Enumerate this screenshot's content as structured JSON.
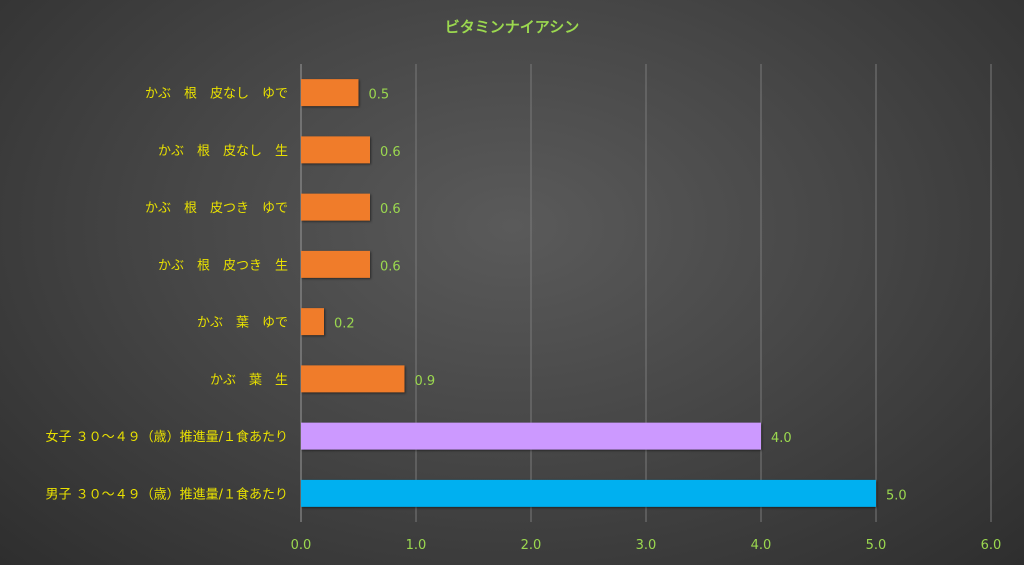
{
  "colors": {
    "title": "#9BD84F",
    "category_label": "#E8E000",
    "tick_label": "#9BD84F",
    "data_label": "#9BD84F",
    "gridline": "#7a7a7a",
    "background": "#474747"
  },
  "chart_data": {
    "type": "bar",
    "orientation": "horizontal",
    "title": "ビタミンナイアシン",
    "xlabel": "",
    "ylabel": "",
    "xlim": [
      0,
      6
    ],
    "x_ticks": [
      "0.0",
      "1.0",
      "2.0",
      "3.0",
      "4.0",
      "5.0",
      "6.0"
    ],
    "grid": true,
    "legend": "none",
    "categories": [
      "かぶ　根　皮なし　ゆで",
      "かぶ　根　皮なし　生",
      "かぶ　根　皮つき　ゆで",
      "かぶ　根　皮つき　生",
      "かぶ　葉　ゆで",
      "かぶ　葉　生",
      "女子 ３０～４９（歳）推進量/１食あたり",
      "男子 ３０～４９（歳）推進量/１食あたり"
    ],
    "values": [
      0.5,
      0.6,
      0.6,
      0.6,
      0.2,
      0.9,
      4.0,
      5.0
    ],
    "value_labels": [
      "0.5",
      "0.6",
      "0.6",
      "0.6",
      "0.2",
      "0.9",
      "4.0",
      "5.0"
    ],
    "bar_colors": [
      "#F07C2A",
      "#F07C2A",
      "#F07C2A",
      "#F07C2A",
      "#F07C2A",
      "#F07C2A",
      "#CC99FF",
      "#00B0F0"
    ]
  }
}
